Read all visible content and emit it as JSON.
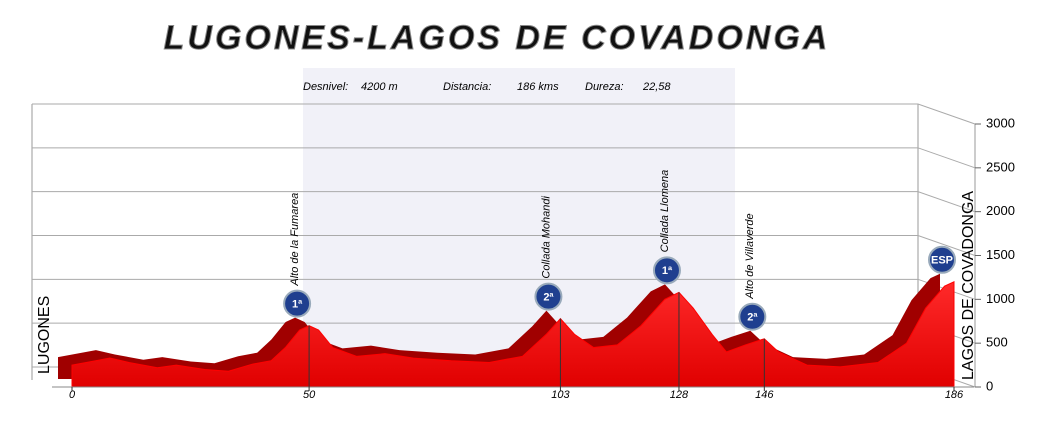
{
  "chart_data": {
    "type": "area",
    "title": "LUGONES-LAGOS DE COVADONGA",
    "stats": [
      {
        "label": "Desnivel:",
        "value": "4200 m"
      },
      {
        "label": "Distancia:",
        "value": "186 kms"
      },
      {
        "label": "Dureza:",
        "value": "22,58"
      }
    ],
    "start_label": "LUGONES",
    "end_label": "LAGOS DE COVADONGA",
    "x": [
      0,
      5,
      8,
      12,
      18,
      22,
      28,
      33,
      38,
      42,
      45,
      48,
      50,
      52,
      55,
      60,
      66,
      72,
      80,
      88,
      95,
      100,
      103,
      106,
      110,
      115,
      120,
      125,
      128,
      131,
      135,
      138,
      142,
      146,
      149,
      155,
      162,
      170,
      176,
      180,
      184,
      186
    ],
    "values": [
      250,
      300,
      330,
      280,
      220,
      250,
      200,
      180,
      260,
      300,
      450,
      650,
      700,
      650,
      450,
      350,
      380,
      330,
      300,
      280,
      350,
      600,
      780,
      600,
      450,
      480,
      700,
      1000,
      1080,
      900,
      600,
      400,
      480,
      550,
      400,
      250,
      230,
      280,
      500,
      900,
      1150,
      1200
    ],
    "color": "#ff0000",
    "peaks": [
      {
        "name": "Alto de la Fumarea",
        "km": 50,
        "category": "1ª"
      },
      {
        "name": "Collada Mohandi",
        "km": 103,
        "category": "2ª"
      },
      {
        "name": "Collada Llomena",
        "km": 128,
        "category": "1ª"
      },
      {
        "name": "Alto de Villaverde",
        "km": 146,
        "category": "2ª"
      },
      {
        "name": null,
        "km": 186,
        "category": "ESP"
      }
    ],
    "xlim": [
      0,
      186
    ],
    "xticks": [
      0,
      50,
      103,
      128,
      146,
      186
    ],
    "ylim": [
      0,
      3000
    ],
    "yticks": [
      0,
      500,
      1000,
      1500,
      2000,
      2500,
      3000
    ],
    "grid": true
  }
}
